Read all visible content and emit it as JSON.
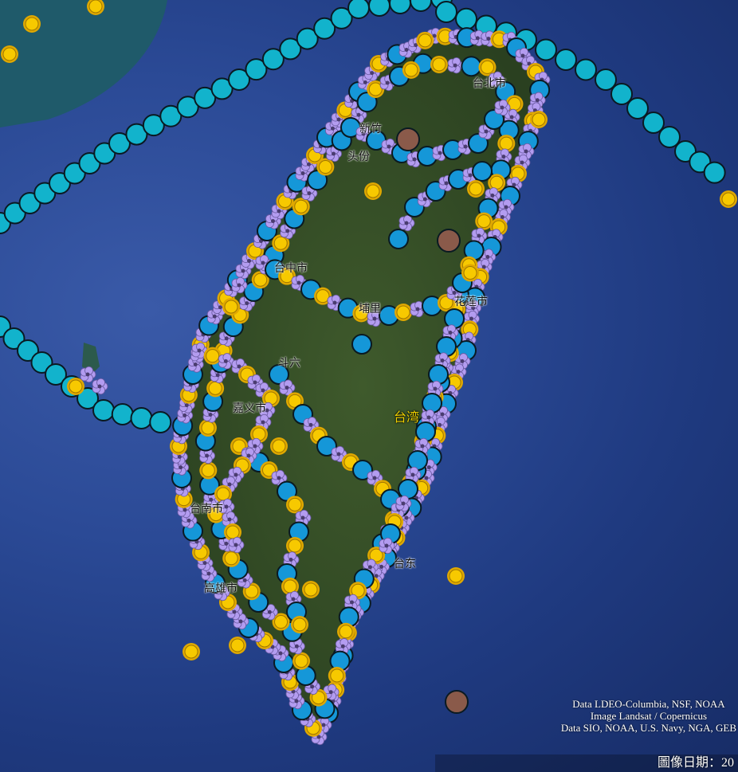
{
  "map": {
    "view": "satellite",
    "region_label": "台湾",
    "places": [
      {
        "name": "台北市"
      },
      {
        "name": "新竹"
      },
      {
        "name": "头份"
      },
      {
        "name": "台中市"
      },
      {
        "name": "埔里"
      },
      {
        "name": "花莲市"
      },
      {
        "name": "斗六"
      },
      {
        "name": "嘉义市"
      },
      {
        "name": "台南市"
      },
      {
        "name": "高雄市"
      },
      {
        "name": "台东"
      }
    ],
    "marker_types": [
      {
        "type": "track-circle",
        "color": "#12b3cc"
      },
      {
        "type": "blue-circle",
        "color": "#1597d8"
      },
      {
        "type": "sun-icon",
        "color": "#f7c900"
      },
      {
        "type": "flower-icon",
        "color": "#b39cf0"
      },
      {
        "type": "brown-circle",
        "color": "#8a5a4a"
      }
    ]
  },
  "attribution": [
    "Data LDEO-Columbia, NSF, NOAA",
    "Image Landsat / Copernicus",
    "Data SIO, NOAA, U.S. Navy, NGA, GEB"
  ],
  "date_label": "圖像日期：20"
}
